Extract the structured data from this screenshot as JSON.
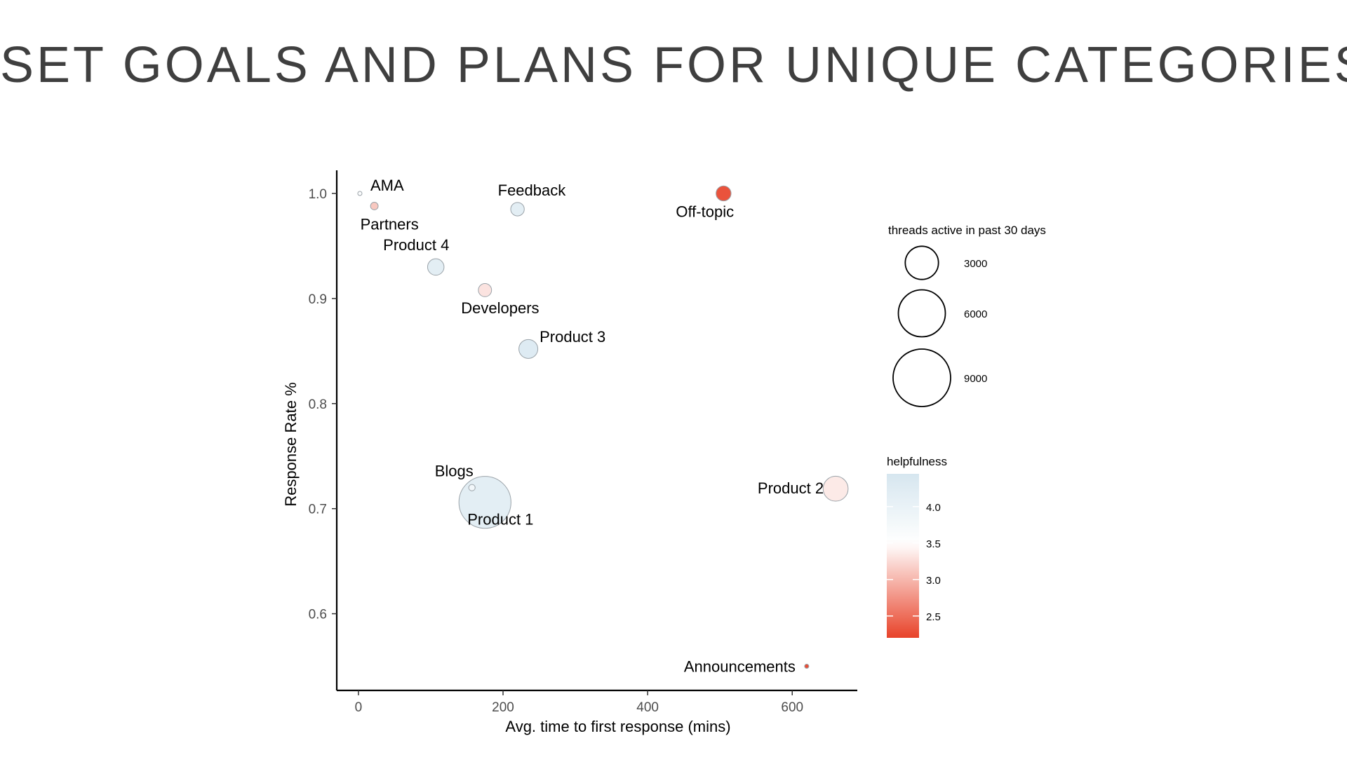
{
  "slide": {
    "title": "SET GOALS AND PLANS FOR UNIQUE CATEGORIES"
  },
  "chart_data": {
    "type": "scatter",
    "xlabel": "Avg. time to first response (mins)",
    "ylabel": "Response Rate %",
    "xlim": [
      -30,
      690
    ],
    "ylim": [
      0.527,
      1.022
    ],
    "x_ticks": [
      0,
      200,
      400,
      600
    ],
    "y_ticks": [
      0.6,
      0.7,
      0.8,
      0.9,
      1.0
    ],
    "x_tick_labels": [
      "0",
      "200",
      "400",
      "600"
    ],
    "y_tick_labels": [
      "0.6",
      "0.7",
      "0.8",
      "0.9",
      "1.0"
    ],
    "grid": false,
    "size_legend": {
      "title": "threads active in past 30 days",
      "placement": "right",
      "entries": [
        {
          "value": 3000,
          "label": "3000"
        },
        {
          "value": 6000,
          "label": "6000"
        },
        {
          "value": 9000,
          "label": "9000"
        }
      ]
    },
    "color_legend": {
      "title": "helpfulness",
      "placement": "right",
      "range": [
        2.2,
        4.45
      ],
      "ticks": [
        4.0,
        3.5,
        3.0,
        2.5
      ],
      "tick_labels": [
        "4.0",
        "3.5",
        "3.0",
        "2.5"
      ],
      "low_color": "#e8432a",
      "mid_value": 3.5,
      "mid_color": "#ffffff",
      "high_color": "#d6e6ef"
    },
    "points": [
      {
        "label": "AMA",
        "x": 2,
        "y": 1.0,
        "threads": 15,
        "helpfulness": 3.6,
        "label_pos": "upper-right"
      },
      {
        "label": "Partners",
        "x": 22,
        "y": 0.988,
        "threads": 140,
        "helpfulness": 3.1,
        "label_pos": "below-right"
      },
      {
        "label": "Feedback",
        "x": 220,
        "y": 0.985,
        "threads": 440,
        "helpfulness": 4.2,
        "label_pos": "above-right"
      },
      {
        "label": "Off-topic",
        "x": 505,
        "y": 1.0,
        "threads": 540,
        "helpfulness": 2.25,
        "label_pos": "below-left"
      },
      {
        "label": "Product 4",
        "x": 107,
        "y": 0.93,
        "threads": 650,
        "helpfulness": 4.2,
        "label_pos": "above-left"
      },
      {
        "label": "Developers",
        "x": 175,
        "y": 0.908,
        "threads": 420,
        "helpfulness": 3.3,
        "label_pos": "below-right"
      },
      {
        "label": "Product 3",
        "x": 235,
        "y": 0.852,
        "threads": 860,
        "helpfulness": 4.3,
        "label_pos": "above-right"
      },
      {
        "label": "Blogs",
        "x": 157,
        "y": 0.72,
        "threads": 100,
        "helpfulness": 3.8,
        "label_pos": "above-left"
      },
      {
        "label": "Product 1",
        "x": 175,
        "y": 0.706,
        "threads": 6500,
        "helpfulness": 4.2,
        "label_pos": "below-right"
      },
      {
        "label": "Product 2",
        "x": 660,
        "y": 0.719,
        "threads": 1500,
        "helpfulness": 3.35,
        "label_pos": "left"
      },
      {
        "label": "Announcements",
        "x": 620,
        "y": 0.55,
        "threads": 20,
        "helpfulness": 2.2,
        "label_pos": "left"
      }
    ]
  }
}
